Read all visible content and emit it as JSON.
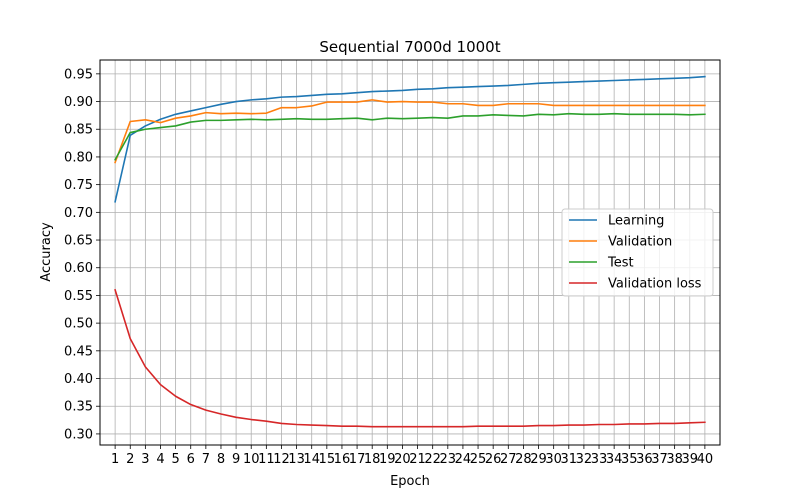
{
  "chart_data": {
    "type": "line",
    "title": "Sequential 7000d 1000t",
    "xlabel": "Epoch",
    "ylabel": "Accuracy",
    "x": [
      1,
      2,
      3,
      4,
      5,
      6,
      7,
      8,
      9,
      10,
      11,
      12,
      13,
      14,
      15,
      16,
      17,
      18,
      19,
      20,
      21,
      22,
      23,
      24,
      25,
      26,
      27,
      28,
      29,
      30,
      31,
      32,
      33,
      34,
      35,
      36,
      37,
      38,
      39,
      40
    ],
    "xlim": [
      0,
      41
    ],
    "ylim": [
      0.28,
      0.975
    ],
    "yticks": [
      "0.30",
      "0.35",
      "0.40",
      "0.45",
      "0.50",
      "0.55",
      "0.60",
      "0.65",
      "0.70",
      "0.75",
      "0.80",
      "0.85",
      "0.90",
      "0.95"
    ],
    "grid": true,
    "legend_position": "center-right",
    "series": [
      {
        "name": "Learning",
        "color": "#1f77b4",
        "values": [
          0.719,
          0.839,
          0.856,
          0.868,
          0.877,
          0.883,
          0.889,
          0.895,
          0.9,
          0.903,
          0.905,
          0.908,
          0.909,
          0.911,
          0.913,
          0.914,
          0.916,
          0.918,
          0.919,
          0.92,
          0.922,
          0.923,
          0.925,
          0.926,
          0.927,
          0.928,
          0.929,
          0.931,
          0.933,
          0.934,
          0.935,
          0.936,
          0.937,
          0.938,
          0.939,
          0.94,
          0.941,
          0.942,
          0.943,
          0.945
        ]
      },
      {
        "name": "Validation",
        "color": "#ff7f0e",
        "values": [
          0.79,
          0.864,
          0.867,
          0.862,
          0.87,
          0.874,
          0.88,
          0.878,
          0.879,
          0.878,
          0.879,
          0.889,
          0.889,
          0.892,
          0.899,
          0.899,
          0.899,
          0.903,
          0.899,
          0.9,
          0.899,
          0.899,
          0.896,
          0.896,
          0.893,
          0.893,
          0.896,
          0.896,
          0.896,
          0.893,
          0.893,
          0.893,
          0.893,
          0.893,
          0.893,
          0.893,
          0.893,
          0.893,
          0.893,
          0.893
        ]
      },
      {
        "name": "Test",
        "color": "#2ca02c",
        "values": [
          0.795,
          0.844,
          0.85,
          0.853,
          0.856,
          0.863,
          0.866,
          0.866,
          0.867,
          0.868,
          0.867,
          0.868,
          0.869,
          0.868,
          0.868,
          0.869,
          0.87,
          0.867,
          0.87,
          0.869,
          0.87,
          0.871,
          0.87,
          0.874,
          0.874,
          0.876,
          0.875,
          0.874,
          0.877,
          0.876,
          0.878,
          0.877,
          0.877,
          0.878,
          0.877,
          0.877,
          0.877,
          0.877,
          0.876,
          0.877
        ]
      },
      {
        "name": "Validation loss",
        "color": "#d62728",
        "values": [
          0.56,
          0.472,
          0.421,
          0.389,
          0.368,
          0.353,
          0.343,
          0.336,
          0.33,
          0.326,
          0.323,
          0.319,
          0.317,
          0.316,
          0.315,
          0.314,
          0.314,
          0.313,
          0.313,
          0.313,
          0.313,
          0.313,
          0.313,
          0.313,
          0.314,
          0.314,
          0.314,
          0.314,
          0.315,
          0.315,
          0.316,
          0.316,
          0.317,
          0.317,
          0.318,
          0.318,
          0.319,
          0.319,
          0.32,
          0.321
        ]
      }
    ]
  }
}
